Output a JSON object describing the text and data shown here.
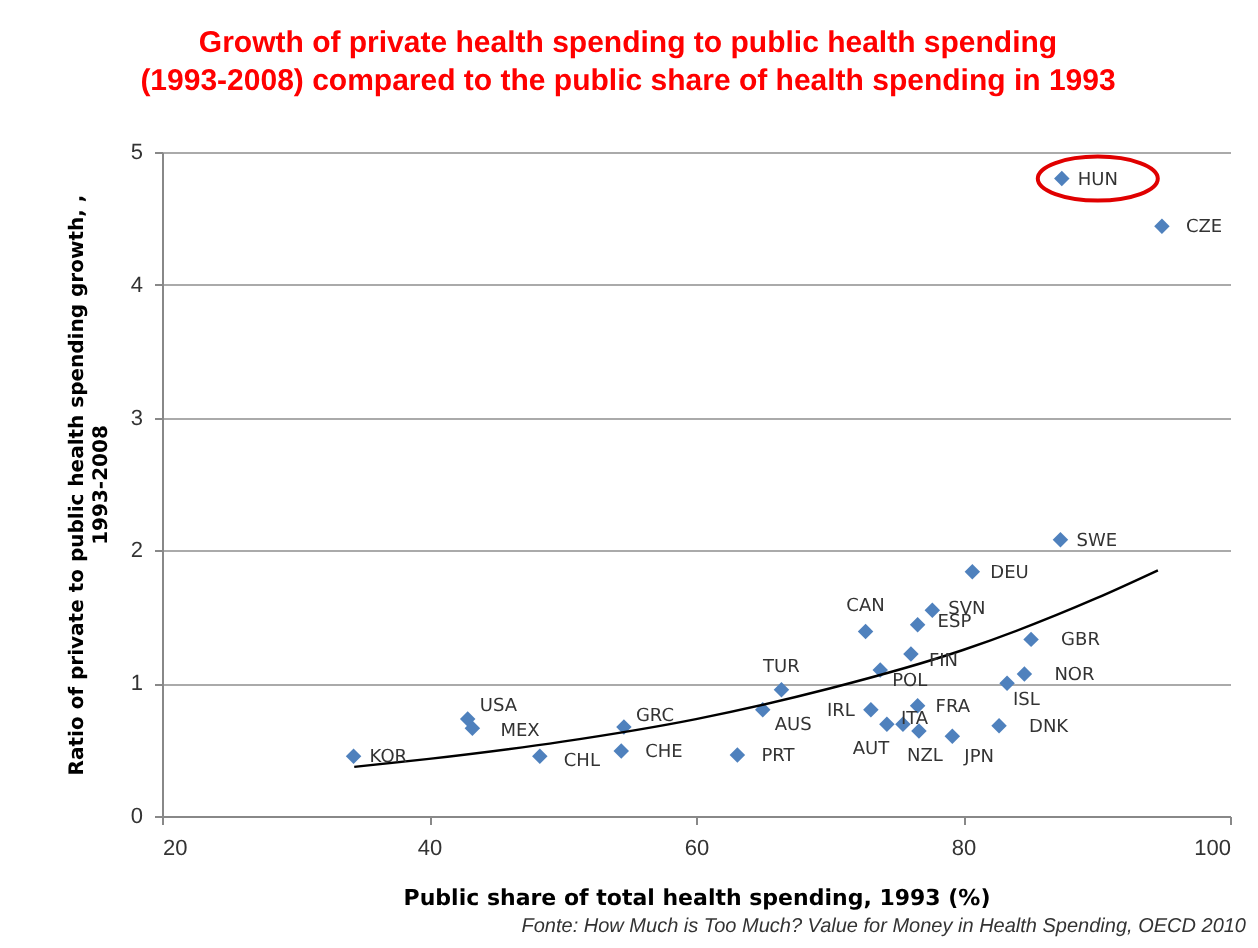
{
  "chart_data": {
    "type": "scatter",
    "title": "Growth of private health spending to public health spending (1993-2008) compared to the public share of health spending in 1993",
    "xlabel": "Public share of total health spending, 1993 (%)",
    "ylabel": "Ratio of private to public health spending growth, , 1993-2008",
    "xlim": [
      20,
      100
    ],
    "xticks": [
      20,
      40,
      60,
      80,
      100
    ],
    "ylim": [
      0,
      5
    ],
    "yticks": [
      0,
      1,
      2,
      3,
      4,
      5
    ],
    "grid": "y",
    "series": [
      {
        "marker": "diamond",
        "color": "#4f81bd",
        "x": [
          34.35,
          42.9,
          43.25,
          48.3,
          54.6,
          54.4,
          63.1,
          65.0,
          66.4,
          73.1,
          72.7,
          73.8,
          74.3,
          75.5,
          76.7,
          76.6,
          76.1,
          76.6,
          77.7,
          79.2,
          80.7,
          82.7,
          83.3,
          84.6,
          85.1,
          87.3,
          87.4,
          94.9
        ],
        "values": [
          0.45,
          0.73,
          0.66,
          0.45,
          0.67,
          0.49,
          0.46,
          0.8,
          0.95,
          0.8,
          1.39,
          1.1,
          0.69,
          0.69,
          0.64,
          0.83,
          1.22,
          1.44,
          1.55,
          0.6,
          1.84,
          0.68,
          1.0,
          1.07,
          1.33,
          2.08,
          4.8,
          4.44
        ]
      },
      {
        "type": "line",
        "color": "#000000",
        "x": [
          34.4,
          40,
          50,
          60,
          70,
          80,
          90,
          94.6
        ],
        "values": [
          0.37,
          0.43,
          0.56,
          0.73,
          0.96,
          1.25,
          1.64,
          1.85
        ]
      }
    ],
    "annotations": [
      {
        "text": "KOR",
        "x": 34.35,
        "y": 0.45
      },
      {
        "text": "USA",
        "x": 42.9,
        "y": 0.73
      },
      {
        "text": "MEX",
        "x": 43.25,
        "y": 0.66
      },
      {
        "text": "CHL",
        "x": 48.3,
        "y": 0.45
      },
      {
        "text": "GRC",
        "x": 54.6,
        "y": 0.67
      },
      {
        "text": "CHE",
        "x": 54.4,
        "y": 0.49
      },
      {
        "text": "PRT",
        "x": 63.1,
        "y": 0.46
      },
      {
        "text": "AUS",
        "x": 65.0,
        "y": 0.8
      },
      {
        "text": "TUR",
        "x": 66.4,
        "y": 0.95
      },
      {
        "text": "IRL",
        "x": 73.1,
        "y": 0.8
      },
      {
        "text": "CAN",
        "x": 72.7,
        "y": 1.39
      },
      {
        "text": "POL",
        "x": 73.8,
        "y": 1.1
      },
      {
        "text": "AUT",
        "x": 74.3,
        "y": 0.69
      },
      {
        "text": "ITA",
        "x": 75.5,
        "y": 0.69
      },
      {
        "text": "NZL",
        "x": 76.7,
        "y": 0.64
      },
      {
        "text": "FRA",
        "x": 76.6,
        "y": 0.83
      },
      {
        "text": "FIN",
        "x": 76.1,
        "y": 1.22
      },
      {
        "text": "ESP",
        "x": 76.6,
        "y": 1.44
      },
      {
        "text": "SVN",
        "x": 77.7,
        "y": 1.55
      },
      {
        "text": "JPN",
        "x": 79.2,
        "y": 0.6
      },
      {
        "text": "DEU",
        "x": 80.7,
        "y": 1.84
      },
      {
        "text": "DNK",
        "x": 82.7,
        "y": 0.68
      },
      {
        "text": "ISL",
        "x": 83.3,
        "y": 1.0
      },
      {
        "text": "NOR",
        "x": 84.6,
        "y": 1.07
      },
      {
        "text": "GBR",
        "x": 85.1,
        "y": 1.33
      },
      {
        "text": "SWE",
        "x": 87.3,
        "y": 2.08
      },
      {
        "text": "HUN",
        "x": 87.4,
        "y": 4.8
      },
      {
        "text": "CZE",
        "x": 94.9,
        "y": 4.44
      },
      "Fonte: How Much is Too Much? Value for Money in Health Spending, OECD 2010"
    ]
  }
}
